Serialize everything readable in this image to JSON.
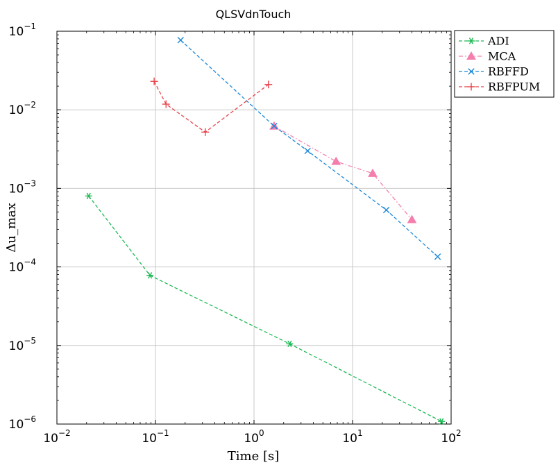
{
  "chart_data": {
    "type": "line",
    "title": "QLSVdnTouch",
    "xlabel": "Time [s]",
    "ylabel": "Δu_max",
    "xscale": "log",
    "yscale": "log",
    "xlim": [
      0.01,
      100
    ],
    "ylim": [
      1e-06,
      0.1
    ],
    "grid": true,
    "legend_position": "outside-top-right",
    "x_ticks": [
      {
        "value": 0.01,
        "base": "10",
        "exp": "−2"
      },
      {
        "value": 0.1,
        "base": "10",
        "exp": "−1"
      },
      {
        "value": 1,
        "base": "10",
        "exp": "0"
      },
      {
        "value": 10,
        "base": "10",
        "exp": "1"
      },
      {
        "value": 100,
        "base": "10",
        "exp": "2"
      }
    ],
    "y_ticks": [
      {
        "value": 1e-06,
        "base": "10",
        "exp": "−6"
      },
      {
        "value": 1e-05,
        "base": "10",
        "exp": "−5"
      },
      {
        "value": 0.0001,
        "base": "10",
        "exp": "−4"
      },
      {
        "value": 0.001,
        "base": "10",
        "exp": "−3"
      },
      {
        "value": 0.01,
        "base": "10",
        "exp": "−2"
      },
      {
        "value": 0.1,
        "base": "10",
        "exp": "−1"
      }
    ],
    "series": [
      {
        "name": "ADI",
        "color": "#1db954",
        "marker": "asterisk",
        "dash": "dashed",
        "x": [
          0.021,
          0.088,
          2.3,
          80
        ],
        "y": [
          0.0008,
          7.8e-05,
          1.05e-05,
          1.08e-06
        ]
      },
      {
        "name": "MCA",
        "color": "#f47fad",
        "marker": "triangle",
        "dash": "dashdot",
        "x": [
          1.6,
          6.8,
          16,
          40
        ],
        "y": [
          0.0062,
          0.0022,
          0.00155,
          0.0004
        ]
      },
      {
        "name": "RBFFD",
        "color": "#1a88d8",
        "marker": "x",
        "dash": "dashed",
        "x": [
          0.18,
          1.6,
          3.5,
          22,
          73
        ],
        "y": [
          0.077,
          0.0062,
          0.003,
          0.00053,
          0.000135
        ]
      },
      {
        "name": "RBFPUM",
        "color": "#e8434b",
        "marker": "plus",
        "dash": "dashed",
        "x": [
          0.097,
          0.128,
          0.32,
          1.4
        ],
        "y": [
          0.023,
          0.0118,
          0.0052,
          0.021
        ]
      }
    ]
  }
}
